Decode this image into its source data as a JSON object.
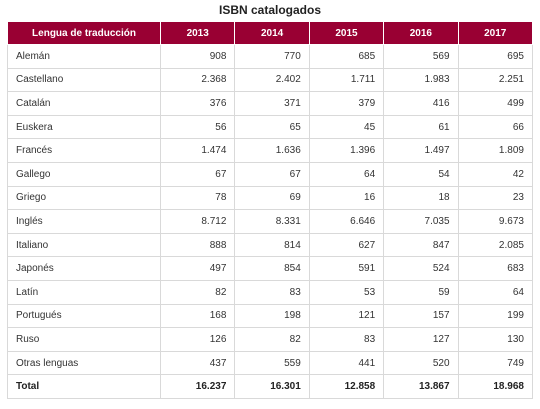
{
  "title": "ISBN catalogados",
  "table": {
    "headers": [
      "Lengua de traducción",
      "2013",
      "2014",
      "2015",
      "2016",
      "2017"
    ],
    "rows": [
      [
        "Alemán",
        "908",
        "770",
        "685",
        "569",
        "695"
      ],
      [
        "Castellano",
        "2.368",
        "2.402",
        "1.711",
        "1.983",
        "2.251"
      ],
      [
        "Catalán",
        "376",
        "371",
        "379",
        "416",
        "499"
      ],
      [
        "Euskera",
        "56",
        "65",
        "45",
        "61",
        "66"
      ],
      [
        "Francés",
        "1.474",
        "1.636",
        "1.396",
        "1.497",
        "1.809"
      ],
      [
        "Gallego",
        "67",
        "67",
        "64",
        "54",
        "42"
      ],
      [
        "Griego",
        "78",
        "69",
        "16",
        "18",
        "23"
      ],
      [
        "Inglés",
        "8.712",
        "8.331",
        "6.646",
        "7.035",
        "9.673"
      ],
      [
        "Italiano",
        "888",
        "814",
        "627",
        "847",
        "2.085"
      ],
      [
        "Japonés",
        "497",
        "854",
        "591",
        "524",
        "683"
      ],
      [
        "Latín",
        "82",
        "83",
        "53",
        "59",
        "64"
      ],
      [
        "Portugués",
        "168",
        "198",
        "121",
        "157",
        "199"
      ],
      [
        "Ruso",
        "126",
        "82",
        "83",
        "127",
        "130"
      ],
      [
        "Otras lenguas",
        "437",
        "559",
        "441",
        "520",
        "749"
      ]
    ],
    "total": [
      "Total",
      "16.237",
      "16.301",
      "12.858",
      "13.867",
      "18.968"
    ]
  },
  "colors": {
    "header_bg": "#990033",
    "header_text": "#ffffff",
    "border": "#d9d9d9"
  }
}
